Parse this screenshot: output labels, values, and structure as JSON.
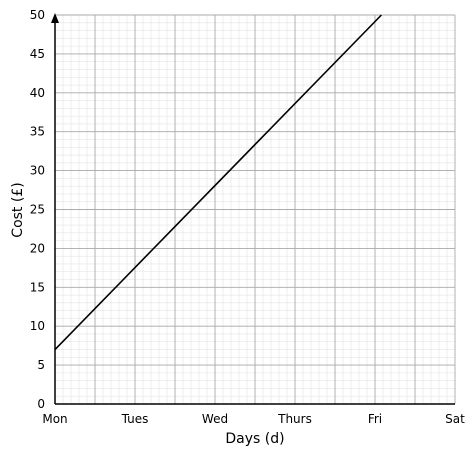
{
  "chart_data": {
    "type": "line",
    "xlabel": "Days (d)",
    "ylabel": "Cost (£)",
    "categories": [
      "Mon",
      "Tues",
      "Wed",
      "Thurs",
      "Fri",
      "Sat"
    ],
    "xlim": [
      0,
      5
    ],
    "ylim": [
      0,
      50
    ],
    "y_ticks": [
      0,
      5,
      10,
      15,
      20,
      25,
      30,
      35,
      40,
      45,
      50
    ],
    "grid": true,
    "series": [
      {
        "x": [
          0,
          4.08
        ],
        "y": [
          7,
          50
        ]
      }
    ]
  }
}
